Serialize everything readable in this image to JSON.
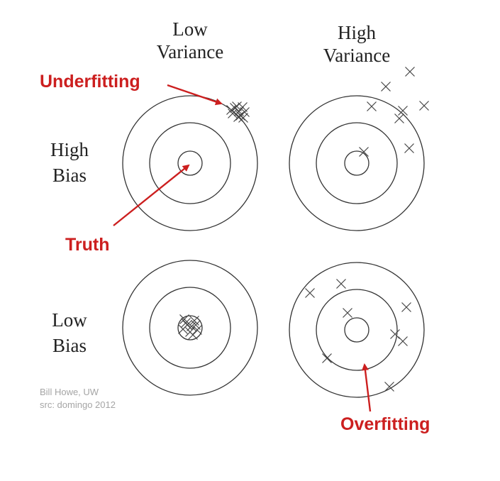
{
  "headers": {
    "low_variance": [
      "Low",
      "Variance"
    ],
    "high_variance": [
      "High",
      "Variance"
    ],
    "high_bias": [
      "High",
      "Bias"
    ],
    "low_bias": [
      "Low",
      "Bias"
    ]
  },
  "annotations": {
    "underfitting": "Underfitting",
    "truth": "Truth",
    "overfitting": "Overfitting"
  },
  "credit": {
    "author": "Bill Howe, UW",
    "source": "src: domingo 2012"
  },
  "colors": {
    "annotation": "#cc1f1f",
    "rings": "#333333",
    "marks": "#444444",
    "credit": "#a5a5a5"
  }
}
